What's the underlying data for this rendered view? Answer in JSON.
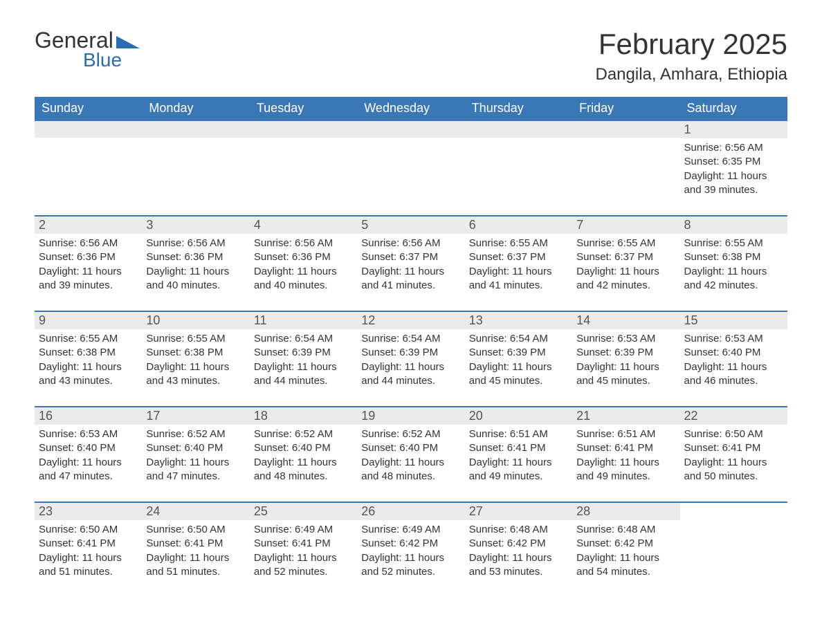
{
  "logo": {
    "text1": "General",
    "text2": "Blue",
    "icon_color": "#2c6cb0"
  },
  "title": "February 2025",
  "location": "Dangila, Amhara, Ethiopia",
  "colors": {
    "header_bg": "#3a77b7",
    "header_text": "#ffffff",
    "cell_border": "#3a77b7",
    "daynum_bg": "#ebebeb",
    "text": "#333333"
  },
  "day_headers": [
    "Sunday",
    "Monday",
    "Tuesday",
    "Wednesday",
    "Thursday",
    "Friday",
    "Saturday"
  ],
  "weeks": [
    [
      null,
      null,
      null,
      null,
      null,
      null,
      {
        "d": "1",
        "sr": "6:56 AM",
        "ss": "6:35 PM",
        "dl": "11 hours and 39 minutes."
      }
    ],
    [
      {
        "d": "2",
        "sr": "6:56 AM",
        "ss": "6:36 PM",
        "dl": "11 hours and 39 minutes."
      },
      {
        "d": "3",
        "sr": "6:56 AM",
        "ss": "6:36 PM",
        "dl": "11 hours and 40 minutes."
      },
      {
        "d": "4",
        "sr": "6:56 AM",
        "ss": "6:36 PM",
        "dl": "11 hours and 40 minutes."
      },
      {
        "d": "5",
        "sr": "6:56 AM",
        "ss": "6:37 PM",
        "dl": "11 hours and 41 minutes."
      },
      {
        "d": "6",
        "sr": "6:55 AM",
        "ss": "6:37 PM",
        "dl": "11 hours and 41 minutes."
      },
      {
        "d": "7",
        "sr": "6:55 AM",
        "ss": "6:37 PM",
        "dl": "11 hours and 42 minutes."
      },
      {
        "d": "8",
        "sr": "6:55 AM",
        "ss": "6:38 PM",
        "dl": "11 hours and 42 minutes."
      }
    ],
    [
      {
        "d": "9",
        "sr": "6:55 AM",
        "ss": "6:38 PM",
        "dl": "11 hours and 43 minutes."
      },
      {
        "d": "10",
        "sr": "6:55 AM",
        "ss": "6:38 PM",
        "dl": "11 hours and 43 minutes."
      },
      {
        "d": "11",
        "sr": "6:54 AM",
        "ss": "6:39 PM",
        "dl": "11 hours and 44 minutes."
      },
      {
        "d": "12",
        "sr": "6:54 AM",
        "ss": "6:39 PM",
        "dl": "11 hours and 44 minutes."
      },
      {
        "d": "13",
        "sr": "6:54 AM",
        "ss": "6:39 PM",
        "dl": "11 hours and 45 minutes."
      },
      {
        "d": "14",
        "sr": "6:53 AM",
        "ss": "6:39 PM",
        "dl": "11 hours and 45 minutes."
      },
      {
        "d": "15",
        "sr": "6:53 AM",
        "ss": "6:40 PM",
        "dl": "11 hours and 46 minutes."
      }
    ],
    [
      {
        "d": "16",
        "sr": "6:53 AM",
        "ss": "6:40 PM",
        "dl": "11 hours and 47 minutes."
      },
      {
        "d": "17",
        "sr": "6:52 AM",
        "ss": "6:40 PM",
        "dl": "11 hours and 47 minutes."
      },
      {
        "d": "18",
        "sr": "6:52 AM",
        "ss": "6:40 PM",
        "dl": "11 hours and 48 minutes."
      },
      {
        "d": "19",
        "sr": "6:52 AM",
        "ss": "6:40 PM",
        "dl": "11 hours and 48 minutes."
      },
      {
        "d": "20",
        "sr": "6:51 AM",
        "ss": "6:41 PM",
        "dl": "11 hours and 49 minutes."
      },
      {
        "d": "21",
        "sr": "6:51 AM",
        "ss": "6:41 PM",
        "dl": "11 hours and 49 minutes."
      },
      {
        "d": "22",
        "sr": "6:50 AM",
        "ss": "6:41 PM",
        "dl": "11 hours and 50 minutes."
      }
    ],
    [
      {
        "d": "23",
        "sr": "6:50 AM",
        "ss": "6:41 PM",
        "dl": "11 hours and 51 minutes."
      },
      {
        "d": "24",
        "sr": "6:50 AM",
        "ss": "6:41 PM",
        "dl": "11 hours and 51 minutes."
      },
      {
        "d": "25",
        "sr": "6:49 AM",
        "ss": "6:41 PM",
        "dl": "11 hours and 52 minutes."
      },
      {
        "d": "26",
        "sr": "6:49 AM",
        "ss": "6:42 PM",
        "dl": "11 hours and 52 minutes."
      },
      {
        "d": "27",
        "sr": "6:48 AM",
        "ss": "6:42 PM",
        "dl": "11 hours and 53 minutes."
      },
      {
        "d": "28",
        "sr": "6:48 AM",
        "ss": "6:42 PM",
        "dl": "11 hours and 54 minutes."
      },
      null
    ]
  ],
  "labels": {
    "sunrise": "Sunrise: ",
    "sunset": "Sunset: ",
    "daylight": "Daylight: "
  }
}
